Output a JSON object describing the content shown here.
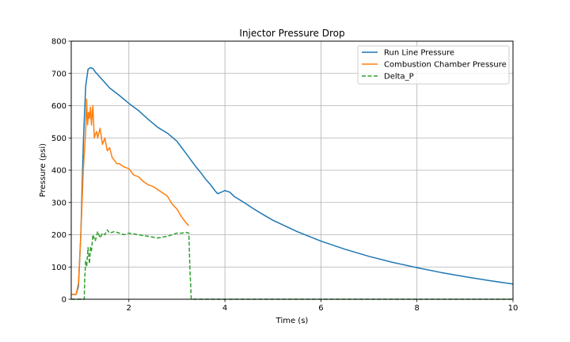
{
  "chart_data": {
    "type": "line",
    "title": "Injector Pressure Drop",
    "xlabel": "Time (s)",
    "ylabel": "Pressure (psi)",
    "xlim": [
      0.8,
      10
    ],
    "ylim": [
      0,
      800
    ],
    "xticks": [
      2,
      4,
      6,
      8,
      10
    ],
    "yticks": [
      0,
      100,
      200,
      300,
      400,
      500,
      600,
      700,
      800
    ],
    "grid": true,
    "legend_position": "top-right",
    "series": [
      {
        "name": "Run Line Pressure",
        "color": "#1f77b4",
        "dash": "solid",
        "x": [
          0.8,
          0.9,
          0.95,
          1.0,
          1.05,
          1.1,
          1.15,
          1.2,
          1.25,
          1.3,
          1.4,
          1.6,
          1.8,
          2.0,
          2.2,
          2.4,
          2.6,
          2.8,
          3.0,
          3.1,
          3.2,
          3.3,
          3.4,
          3.5,
          3.6,
          3.7,
          3.8,
          3.85,
          3.9,
          4.0,
          4.1,
          4.2,
          4.4,
          4.6,
          4.8,
          5.0,
          5.5,
          6.0,
          6.5,
          7.0,
          7.5,
          8.0,
          8.5,
          9.0,
          9.5,
          10.0
        ],
        "y": [
          15,
          15,
          40,
          200,
          480,
          660,
          713,
          718,
          715,
          705,
          688,
          655,
          632,
          607,
          585,
          558,
          533,
          515,
          490,
          470,
          450,
          430,
          410,
          392,
          372,
          355,
          335,
          327,
          330,
          337,
          332,
          318,
          300,
          280,
          262,
          245,
          210,
          180,
          155,
          133,
          114,
          98,
          83,
          70,
          58,
          47
        ]
      },
      {
        "name": "Combustion Chamber Pressure",
        "color": "#ff7f0e",
        "dash": "solid",
        "x": [
          0.8,
          0.9,
          0.95,
          1.0,
          1.05,
          1.1,
          1.12,
          1.14,
          1.16,
          1.18,
          1.2,
          1.22,
          1.25,
          1.28,
          1.3,
          1.33,
          1.35,
          1.4,
          1.45,
          1.5,
          1.55,
          1.6,
          1.65,
          1.7,
          1.75,
          1.8,
          1.9,
          2.0,
          2.1,
          2.2,
          2.3,
          2.4,
          2.5,
          2.6,
          2.7,
          2.8,
          2.9,
          3.0,
          3.1,
          3.2,
          3.25
        ],
        "y": [
          15,
          15,
          50,
          200,
          400,
          520,
          620,
          540,
          580,
          560,
          595,
          540,
          600,
          500,
          510,
          520,
          500,
          530,
          480,
          500,
          460,
          470,
          440,
          430,
          420,
          420,
          410,
          405,
          385,
          380,
          365,
          355,
          350,
          340,
          330,
          320,
          295,
          280,
          255,
          235,
          228
        ]
      },
      {
        "name": "Delta_P",
        "color": "#2ca02c",
        "dash": "dashed",
        "x": [
          0.8,
          1.0,
          1.07,
          1.08,
          1.1,
          1.12,
          1.15,
          1.18,
          1.2,
          1.22,
          1.25,
          1.3,
          1.35,
          1.4,
          1.45,
          1.5,
          1.55,
          1.6,
          1.7,
          1.8,
          1.9,
          2.0,
          2.2,
          2.4,
          2.6,
          2.8,
          3.0,
          3.1,
          3.2,
          3.25,
          3.27,
          3.3,
          4.0,
          6.0,
          8.0,
          10.0
        ],
        "y": [
          0,
          0,
          0,
          60,
          120,
          100,
          160,
          110,
          160,
          150,
          200,
          180,
          210,
          190,
          205,
          200,
          215,
          205,
          210,
          205,
          200,
          205,
          200,
          195,
          190,
          195,
          205,
          205,
          207,
          205,
          100,
          0,
          0,
          0,
          0,
          0
        ]
      }
    ]
  }
}
